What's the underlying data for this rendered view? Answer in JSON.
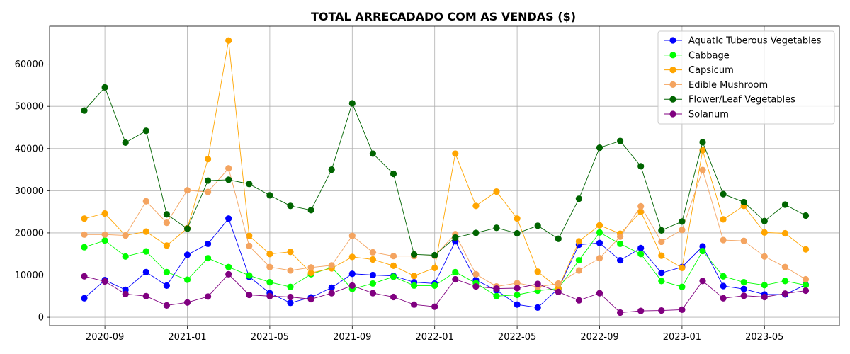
{
  "chart_data": {
    "type": "line",
    "title": "TOTAL ARRECADADO COM AS VENDAS ($)",
    "xlabel": "",
    "ylabel": "",
    "x": [
      "2020-08",
      "2020-09",
      "2020-10",
      "2020-11",
      "2020-12",
      "2021-01",
      "2021-02",
      "2021-03",
      "2021-04",
      "2021-05",
      "2021-06",
      "2021-07",
      "2021-08",
      "2021-09",
      "2021-10",
      "2021-11",
      "2021-12",
      "2022-01",
      "2022-02",
      "2022-03",
      "2022-04",
      "2022-05",
      "2022-06",
      "2022-07",
      "2022-08",
      "2022-09",
      "2022-10",
      "2022-11",
      "2022-12",
      "2023-01",
      "2023-02",
      "2023-03",
      "2023-04",
      "2023-05",
      "2023-06",
      "2023-07"
    ],
    "x_ticks": [
      "2020-09",
      "2021-01",
      "2021-05",
      "2021-09",
      "2022-01",
      "2022-05",
      "2022-09",
      "2023-01",
      "2023-05"
    ],
    "ylim": [
      -2000,
      69000
    ],
    "y_ticks": [
      0,
      10000,
      20000,
      30000,
      40000,
      50000,
      60000
    ],
    "grid": true,
    "legend_position": "top-right",
    "series": [
      {
        "name": "Aquatic Tuberous Vegetables",
        "color": "#0000ff",
        "values": [
          4500,
          8800,
          6500,
          10700,
          7500,
          14800,
          17400,
          23400,
          9600,
          5700,
          3400,
          4700,
          7000,
          10300,
          10000,
          9800,
          8300,
          8000,
          18000,
          8800,
          6400,
          3000,
          2300,
          6800,
          17200,
          17600,
          13500,
          16400,
          10500,
          11900,
          16800,
          7400,
          6700,
          5400,
          5400,
          7700
        ]
      },
      {
        "name": "Cabbage",
        "color": "#00ff00",
        "values": [
          16600,
          18200,
          14400,
          15600,
          10700,
          8900,
          14000,
          11900,
          9900,
          8300,
          7200,
          10200,
          11800,
          6700,
          8000,
          9600,
          7500,
          7500,
          10700,
          8100,
          5000,
          5300,
          6300,
          6800,
          13500,
          20100,
          17400,
          15000,
          8600,
          7200,
          15700,
          9700,
          8300,
          7600,
          8600,
          7600
        ]
      },
      {
        "name": "Capsicum",
        "color": "#ffa500",
        "values": [
          23400,
          24600,
          19400,
          20300,
          17000,
          21100,
          37500,
          65600,
          19300,
          15000,
          15500,
          10500,
          11600,
          14300,
          13700,
          12200,
          9800,
          11700,
          38800,
          26400,
          29800,
          23400,
          10800,
          6900,
          18000,
          21800,
          19800,
          25000,
          14600,
          11700,
          39600,
          23200,
          26400,
          20100,
          19900,
          16100
        ]
      },
      {
        "name": "Edible Mushroom",
        "color": "#f4a460",
        "values": [
          19600,
          19600,
          19400,
          27500,
          22400,
          30100,
          29700,
          35300,
          16900,
          11900,
          11100,
          11800,
          12300,
          19300,
          15400,
          14500,
          14500,
          14600,
          19700,
          10200,
          7300,
          8100,
          7200,
          8000,
          11100,
          14000,
          19100,
          26300,
          17900,
          20700,
          34900,
          18300,
          18100,
          14400,
          11900,
          9000
        ]
      },
      {
        "name": "Flower/Leaf Vegetables",
        "color": "#006400",
        "values": [
          49000,
          54500,
          41400,
          44200,
          24400,
          21000,
          32400,
          32600,
          31600,
          28900,
          26400,
          25400,
          35000,
          50700,
          38800,
          34000,
          14900,
          14700,
          18900,
          20000,
          21200,
          19900,
          21700,
          18600,
          28100,
          40200,
          41800,
          35800,
          20600,
          22700,
          41500,
          29200,
          27300,
          22800,
          26700,
          24100
        ]
      },
      {
        "name": "Solanum",
        "color": "#800080",
        "values": [
          9700,
          8500,
          5500,
          5000,
          2800,
          3500,
          4900,
          10200,
          5300,
          5000,
          4800,
          4300,
          5700,
          7500,
          5700,
          4800,
          3000,
          2500,
          9000,
          7300,
          6800,
          6900,
          7900,
          6000,
          4000,
          5700,
          1100,
          1500,
          1600,
          1800,
          8600,
          4500,
          5100,
          4800,
          5600,
          6300
        ]
      }
    ]
  }
}
